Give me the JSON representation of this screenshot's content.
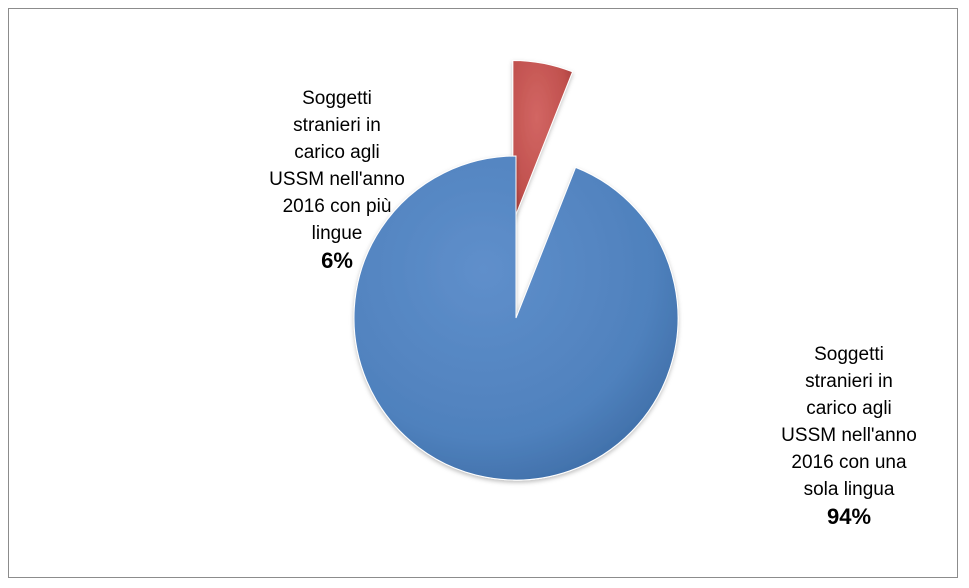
{
  "chart_data": {
    "type": "pie",
    "slices": [
      {
        "label": "Soggetti\nstranieri in\ncarico agli\nUSSM nell'anno\n2016 con più\nlingue",
        "percent_label": "6%",
        "value": 6,
        "color": "#c0504d",
        "exploded": true
      },
      {
        "label": "Soggetti\nstranieri in\ncarico agli\nUSSM nell'anno\n2016 con una\nsola lingua",
        "percent_label": "94%",
        "value": 94,
        "color": "#4f81bd",
        "exploded": false
      }
    ],
    "legend": "none",
    "style": "3d-bevel"
  }
}
